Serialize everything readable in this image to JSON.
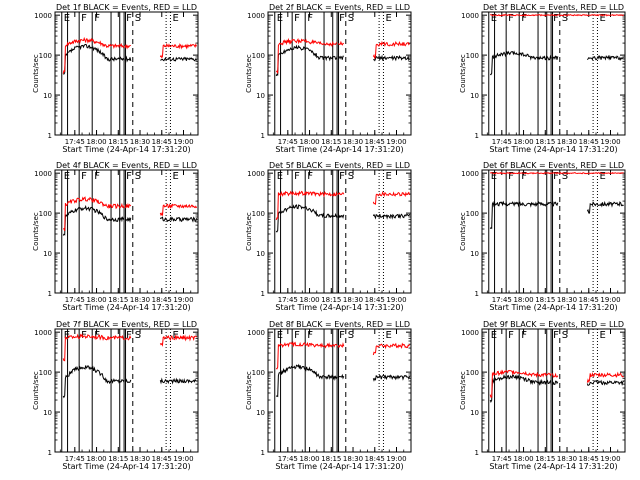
{
  "figure": {
    "background": "#ffffff",
    "axis_color": "#000000",
    "events_color": "#000000",
    "lld_color": "#ff0000"
  },
  "common": {
    "ylabel": "Counts/sec",
    "xlabel": "Start Time (24-Apr-14 17:31:20)",
    "xticks": [
      "17:45",
      "18:00",
      "18:15",
      "18:30",
      "18:45",
      "19:00"
    ],
    "yticks": [
      "1",
      "10",
      "100",
      "1000"
    ]
  },
  "chart_data": [
    {
      "type": "line",
      "title": "Det 1f BLACK = Events, RED = LLD",
      "ylim": [
        1,
        1000
      ],
      "yscale": "log",
      "markers": [
        {
          "label": "E",
          "style": "solid",
          "time": "17:36"
        },
        {
          "label": "F",
          "style": "solid",
          "time": "17:48"
        },
        {
          "label": "F",
          "style": "solid",
          "time": "17:57"
        },
        {
          "label": "F",
          "style": "solid",
          "time": "18:19"
        },
        {
          "label": "S",
          "style": "dashed",
          "time": "18:25"
        },
        {
          "label": "E",
          "style": "dotted",
          "time": "18:51"
        }
      ],
      "series": [
        {
          "name": "Events",
          "color": "#000000",
          "base": 80,
          "bump": 2.1,
          "lead": 130
        },
        {
          "name": "LLD",
          "color": "#ff0000",
          "base": 170,
          "bump": 1.4,
          "lead": 150
        }
      ]
    },
    {
      "type": "line",
      "title": "Det 2f BLACK = Events, RED = LLD",
      "ylim": [
        1,
        1000
      ],
      "yscale": "log",
      "markers": [
        {
          "label": "E",
          "style": "solid",
          "time": "17:36"
        },
        {
          "label": "F",
          "style": "solid",
          "time": "17:48"
        },
        {
          "label": "F",
          "style": "solid",
          "time": "17:57"
        },
        {
          "label": "F",
          "style": "solid",
          "time": "18:19"
        },
        {
          "label": "S",
          "style": "dashed",
          "time": "18:25"
        },
        {
          "label": "E",
          "style": "dotted",
          "time": "18:51"
        }
      ],
      "series": [
        {
          "name": "Events",
          "color": "#000000",
          "base": 85,
          "bump": 1.8,
          "lead": 130
        },
        {
          "name": "LLD",
          "color": "#ff0000",
          "base": 190,
          "bump": 1.2,
          "lead": 150
        }
      ]
    },
    {
      "type": "line",
      "title": "Det 3f BLACK = Events, RED = LLD",
      "ylim": [
        1,
        1000
      ],
      "yscale": "log",
      "markers": [
        {
          "label": "E",
          "style": "solid",
          "time": "17:36"
        },
        {
          "label": "F",
          "style": "solid",
          "time": "17:48"
        },
        {
          "label": "F",
          "style": "solid",
          "time": "17:57"
        },
        {
          "label": "F",
          "style": "solid",
          "time": "18:19"
        },
        {
          "label": "S",
          "style": "dashed",
          "time": "18:25"
        },
        {
          "label": "E",
          "style": "dotted",
          "time": "18:51"
        }
      ],
      "series": [
        {
          "name": "Events",
          "color": "#000000",
          "base": 85,
          "bump": 1.3,
          "lead": 130
        },
        {
          "name": "LLD",
          "color": "#ff0000",
          "base": 1000,
          "bump": 1.0,
          "lead": 1000
        }
      ]
    },
    {
      "type": "line",
      "title": "Det 4f BLACK = Events, RED = LLD",
      "ylim": [
        1,
        1000
      ],
      "yscale": "log",
      "markers": [
        {
          "label": "E",
          "style": "solid",
          "time": "17:36"
        },
        {
          "label": "F",
          "style": "solid",
          "time": "17:48"
        },
        {
          "label": "F",
          "style": "solid",
          "time": "17:57"
        },
        {
          "label": "F",
          "style": "solid",
          "time": "18:19"
        },
        {
          "label": "S",
          "style": "dashed",
          "time": "18:25"
        },
        {
          "label": "E",
          "style": "dotted",
          "time": "18:51"
        }
      ],
      "series": [
        {
          "name": "Events",
          "color": "#000000",
          "base": 70,
          "bump": 1.9,
          "lead": 120
        },
        {
          "name": "LLD",
          "color": "#ff0000",
          "base": 150,
          "bump": 1.5,
          "lead": 160
        }
      ]
    },
    {
      "type": "line",
      "title": "Det 5f BLACK = Events, RED = LLD",
      "ylim": [
        1,
        1000
      ],
      "yscale": "log",
      "markers": [
        {
          "label": "E",
          "style": "solid",
          "time": "17:36"
        },
        {
          "label": "F",
          "style": "solid",
          "time": "17:48"
        },
        {
          "label": "F",
          "style": "solid",
          "time": "17:57"
        },
        {
          "label": "F",
          "style": "solid",
          "time": "18:19"
        },
        {
          "label": "S",
          "style": "dashed",
          "time": "18:25"
        },
        {
          "label": "E",
          "style": "dotted",
          "time": "18:51"
        }
      ],
      "series": [
        {
          "name": "Events",
          "color": "#000000",
          "base": 85,
          "bump": 1.7,
          "lead": 140
        },
        {
          "name": "LLD",
          "color": "#ff0000",
          "base": 300,
          "bump": 1.05,
          "lead": 300
        }
      ]
    },
    {
      "type": "line",
      "title": "Det 6f BLACK = Events, RED = LLD",
      "ylim": [
        1,
        1000
      ],
      "yscale": "log",
      "markers": [
        {
          "label": "E",
          "style": "solid",
          "time": "17:36"
        },
        {
          "label": "F",
          "style": "solid",
          "time": "17:48"
        },
        {
          "label": "F",
          "style": "solid",
          "time": "17:57"
        },
        {
          "label": "F",
          "style": "solid",
          "time": "18:19"
        },
        {
          "label": "S",
          "style": "dashed",
          "time": "18:25"
        },
        {
          "label": "E",
          "style": "dotted",
          "time": "18:51"
        }
      ],
      "series": [
        {
          "name": "Events",
          "color": "#000000",
          "base": 170,
          "bump": 1.0,
          "lead": 180
        },
        {
          "name": "LLD",
          "color": "#ff0000",
          "base": 1000,
          "bump": 1.0,
          "lead": 1000
        }
      ]
    },
    {
      "type": "line",
      "title": "Det 7f BLACK = Events, RED = LLD",
      "ylim": [
        1,
        1000
      ],
      "yscale": "log",
      "markers": [
        {
          "label": "E",
          "style": "solid",
          "time": "17:36"
        },
        {
          "label": "F",
          "style": "solid",
          "time": "17:48"
        },
        {
          "label": "F",
          "style": "solid",
          "time": "17:57"
        },
        {
          "label": "F",
          "style": "solid",
          "time": "18:19"
        },
        {
          "label": "S",
          "style": "dashed",
          "time": "18:25"
        },
        {
          "label": "E",
          "style": "dotted",
          "time": "18:51"
        }
      ],
      "series": [
        {
          "name": "Events",
          "color": "#000000",
          "base": 60,
          "bump": 2.2,
          "lead": 100
        },
        {
          "name": "LLD",
          "color": "#ff0000",
          "base": 720,
          "bump": 1.1,
          "lead": 800
        }
      ]
    },
    {
      "type": "line",
      "title": "Det 8f BLACK = Events, RED = LLD",
      "ylim": [
        1,
        1000
      ],
      "yscale": "log",
      "markers": [
        {
          "label": "E",
          "style": "solid",
          "time": "17:36"
        },
        {
          "label": "F",
          "style": "solid",
          "time": "17:48"
        },
        {
          "label": "F",
          "style": "solid",
          "time": "17:57"
        },
        {
          "label": "F",
          "style": "solid",
          "time": "18:19"
        },
        {
          "label": "S",
          "style": "dashed",
          "time": "18:25"
        },
        {
          "label": "E",
          "style": "dotted",
          "time": "18:51"
        }
      ],
      "series": [
        {
          "name": "Events",
          "color": "#000000",
          "base": 75,
          "bump": 1.8,
          "lead": 110
        },
        {
          "name": "LLD",
          "color": "#ff0000",
          "base": 460,
          "bump": 1.1,
          "lead": 500
        }
      ]
    },
    {
      "type": "line",
      "title": "Det 9f BLACK = Events, RED = LLD",
      "ylim": [
        1,
        1000
      ],
      "yscale": "log",
      "markers": [
        {
          "label": "E",
          "style": "solid",
          "time": "17:36"
        },
        {
          "label": "F",
          "style": "solid",
          "time": "17:48"
        },
        {
          "label": "F",
          "style": "solid",
          "time": "17:57"
        },
        {
          "label": "F",
          "style": "solid",
          "time": "18:19"
        },
        {
          "label": "S",
          "style": "dashed",
          "time": "18:25"
        },
        {
          "label": "E",
          "style": "dotted",
          "time": "18:51"
        }
      ],
      "series": [
        {
          "name": "Events",
          "color": "#000000",
          "base": 55,
          "bump": 1.4,
          "lead": 80
        },
        {
          "name": "LLD",
          "color": "#ff0000",
          "base": 85,
          "bump": 1.2,
          "lead": 100
        }
      ]
    }
  ]
}
